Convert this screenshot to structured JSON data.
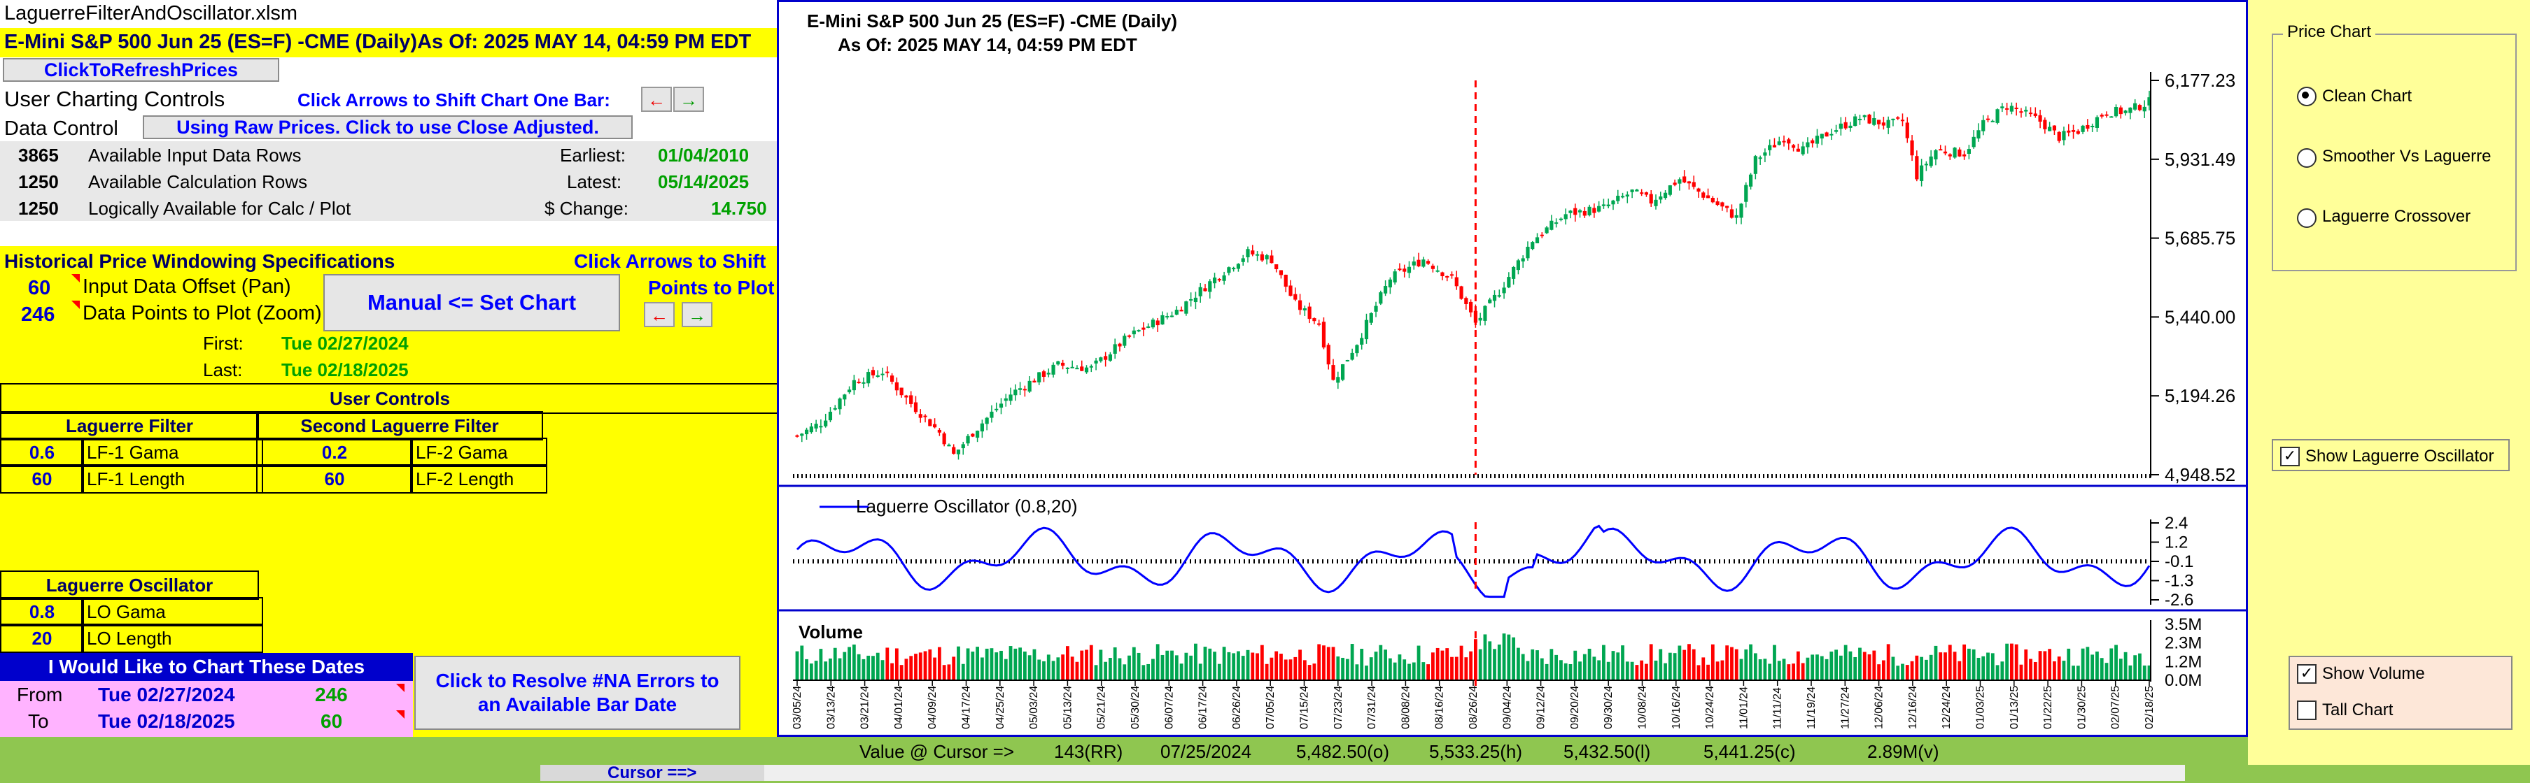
{
  "workbook": {
    "filename": "LaguerreFilterAndOscillator.xlsm",
    "title": "E-Mini S&P 500 Jun 25 (ES=F) -CME  (Daily)As Of: 2025 MAY 14, 04:59 PM EDT",
    "refresh_button": "ClickToRefreshPrices"
  },
  "charting_controls": {
    "heading": "User Charting Controls",
    "shift_hint": "Click Arrows to Shift Chart One Bar:",
    "data_control_label": "Data Control",
    "raw_prices_button": "Using Raw Prices. Click to use Close Adjusted.",
    "rows": [
      {
        "count": "3865",
        "label": "Available Input Data Rows",
        "key": "Earliest:",
        "value": "01/04/2010"
      },
      {
        "count": "1250",
        "label": "Available Calculation Rows",
        "key": "Latest:",
        "value": "05/14/2025"
      },
      {
        "count": "1250",
        "label": "Logically Available for Calc / Plot",
        "key": "$ Change:",
        "value": "14.750"
      }
    ]
  },
  "windowing": {
    "heading": "Historical Price Windowing Specifications",
    "shift_hint_1": "Click Arrows to Shift",
    "shift_hint_2": "Points to Plot",
    "offset_value": "60",
    "offset_label": "Input Data Offset (Pan)",
    "points_value": "246",
    "points_label": "Data Points to Plot (Zoom)",
    "manual_button": "Manual <= Set Chart",
    "first_label": "First:",
    "first_value": "Tue 02/27/2024",
    "last_label": "Last:",
    "last_value": "Tue 02/18/2025"
  },
  "user_controls": {
    "heading": "User Controls",
    "filter1_header": "Laguerre Filter",
    "filter2_header": "Second Laguerre Filter",
    "lf1_gama": "0.6",
    "lf1_gama_label": "LF-1 Gama",
    "lf1_length": "60",
    "lf1_length_label": "LF-1 Length",
    "lf2_gama": "0.2",
    "lf2_gama_label": "LF-2 Gama",
    "lf2_length": "60",
    "lf2_length_label": "LF-2 Length",
    "osc_header": "Laguerre Oscillator",
    "lo_gama": "0.8",
    "lo_gama_label": "LO Gama",
    "lo_length": "20",
    "lo_length_label": "LO Length"
  },
  "dates": {
    "heading": "I Would Like to Chart These Dates",
    "from_label": "From",
    "from_value": "Tue 02/27/2024",
    "from_num": "246",
    "to_label": "To",
    "to_value": "Tue 02/18/2025",
    "to_num": "60",
    "resolve_button": "Click to Resolve #NA Errors to an Available Bar Date"
  },
  "chart": {
    "title_line1": "E-Mini S&P 500 Jun 25 (ES=F) -CME  (Daily)",
    "title_line2": "As Of: 2025 MAY 14, 04:59 PM EDT",
    "price_ticks": [
      "6,177.23",
      "5,931.49",
      "5,685.75",
      "5,440.00",
      "5,194.26",
      "4,948.52"
    ],
    "osc_legend": "Laguerre Oscillator (0.8,20)",
    "osc_ticks": [
      "2.4",
      "1.2",
      "-0.1",
      "-1.3",
      "-2.6"
    ],
    "volume_label": "Volume",
    "vol_ticks": [
      "3.5M",
      "2.3M",
      "1.2M",
      "0.0M"
    ],
    "date_ticks": [
      "03/05/24",
      "03/13/24",
      "03/21/24",
      "04/01/24",
      "04/09/24",
      "04/17/24",
      "04/25/24",
      "05/03/24",
      "05/13/24",
      "05/21/24",
      "05/30/24",
      "06/07/24",
      "06/17/24",
      "06/26/24",
      "07/05/24",
      "07/15/24",
      "07/23/24",
      "07/31/24",
      "08/08/24",
      "08/16/24",
      "08/26/24",
      "09/04/24",
      "09/12/24",
      "09/20/24",
      "09/30/24",
      "10/08/24",
      "10/16/24",
      "10/24/24",
      "11/01/24",
      "11/11/24",
      "11/19/24",
      "11/27/24",
      "12/06/24",
      "12/16/24",
      "12/24/24",
      "01/03/25",
      "01/13/25",
      "01/22/25",
      "01/30/25",
      "02/07/25",
      "02/18/25"
    ],
    "colors": {
      "up": "#00a651",
      "down": "#ff0000",
      "osc": "#0000ff",
      "cursor": "#ff0000"
    }
  },
  "chart_data": [
    {
      "type": "candlestick",
      "title": "E-Mini S&P 500 Jun 25 (ES=F) -CME  (Daily)",
      "x_range": [
        "03/05/24",
        "02/18/25"
      ],
      "ylim": [
        4948.52,
        6177.23
      ],
      "close_trajectory": [
        [
          0,
          5070
        ],
        [
          5,
          5110
        ],
        [
          12,
          5240
        ],
        [
          18,
          5270
        ],
        [
          24,
          5170
        ],
        [
          30,
          5080
        ],
        [
          33,
          5010
        ],
        [
          37,
          5080
        ],
        [
          45,
          5200
        ],
        [
          55,
          5290
        ],
        [
          62,
          5280
        ],
        [
          70,
          5380
        ],
        [
          80,
          5460
        ],
        [
          88,
          5560
        ],
        [
          95,
          5640
        ],
        [
          100,
          5620
        ],
        [
          105,
          5480
        ],
        [
          110,
          5420
        ],
        [
          113,
          5240
        ],
        [
          118,
          5360
        ],
        [
          125,
          5560
        ],
        [
          132,
          5620
        ],
        [
          138,
          5560
        ],
        [
          143,
          5420
        ],
        [
          148,
          5520
        ],
        [
          155,
          5680
        ],
        [
          162,
          5760
        ],
        [
          170,
          5780
        ],
        [
          176,
          5830
        ],
        [
          180,
          5800
        ],
        [
          186,
          5870
        ],
        [
          190,
          5830
        ],
        [
          195,
          5780
        ],
        [
          198,
          5750
        ],
        [
          202,
          5930
        ],
        [
          208,
          6000
        ],
        [
          212,
          5960
        ],
        [
          218,
          6020
        ],
        [
          224,
          6060
        ],
        [
          230,
          6040
        ],
        [
          233,
          6050
        ],
        [
          236,
          5880
        ],
        [
          240,
          5960
        ],
        [
          246,
          5950
        ],
        [
          250,
          6040
        ],
        [
          255,
          6100
        ],
        [
          262,
          6050
        ],
        [
          266,
          6000
        ],
        [
          270,
          6020
        ],
        [
          276,
          6080
        ],
        [
          280,
          6080
        ],
        [
          285,
          6110
        ]
      ]
    },
    {
      "type": "line",
      "name": "Laguerre Oscillator (0.8,20)",
      "ylim": [
        -2.6,
        2.4
      ]
    },
    {
      "type": "bar",
      "name": "Volume",
      "ylim": [
        0,
        3.5
      ]
    }
  ],
  "cursor": {
    "label": "Value @ Cursor =>",
    "bar": "143(RR)",
    "date": "07/25/2024",
    "open": "5,482.50(o)",
    "high": "5,533.25(h)",
    "low": "5,432.50(l)",
    "close": "5,441.25(c)",
    "volume": "2.89M(v)",
    "cursor_label": "Cursor ==>"
  },
  "right_panel": {
    "group_title": "Price Chart",
    "options": [
      "Clean Chart",
      "Smoother Vs Laguerre",
      "Laguerre Crossover"
    ],
    "selected": "Clean Chart",
    "show_osc": "Show Laguerre Oscillator",
    "show_volume": "Show Volume",
    "tall_chart": "Tall Chart"
  }
}
